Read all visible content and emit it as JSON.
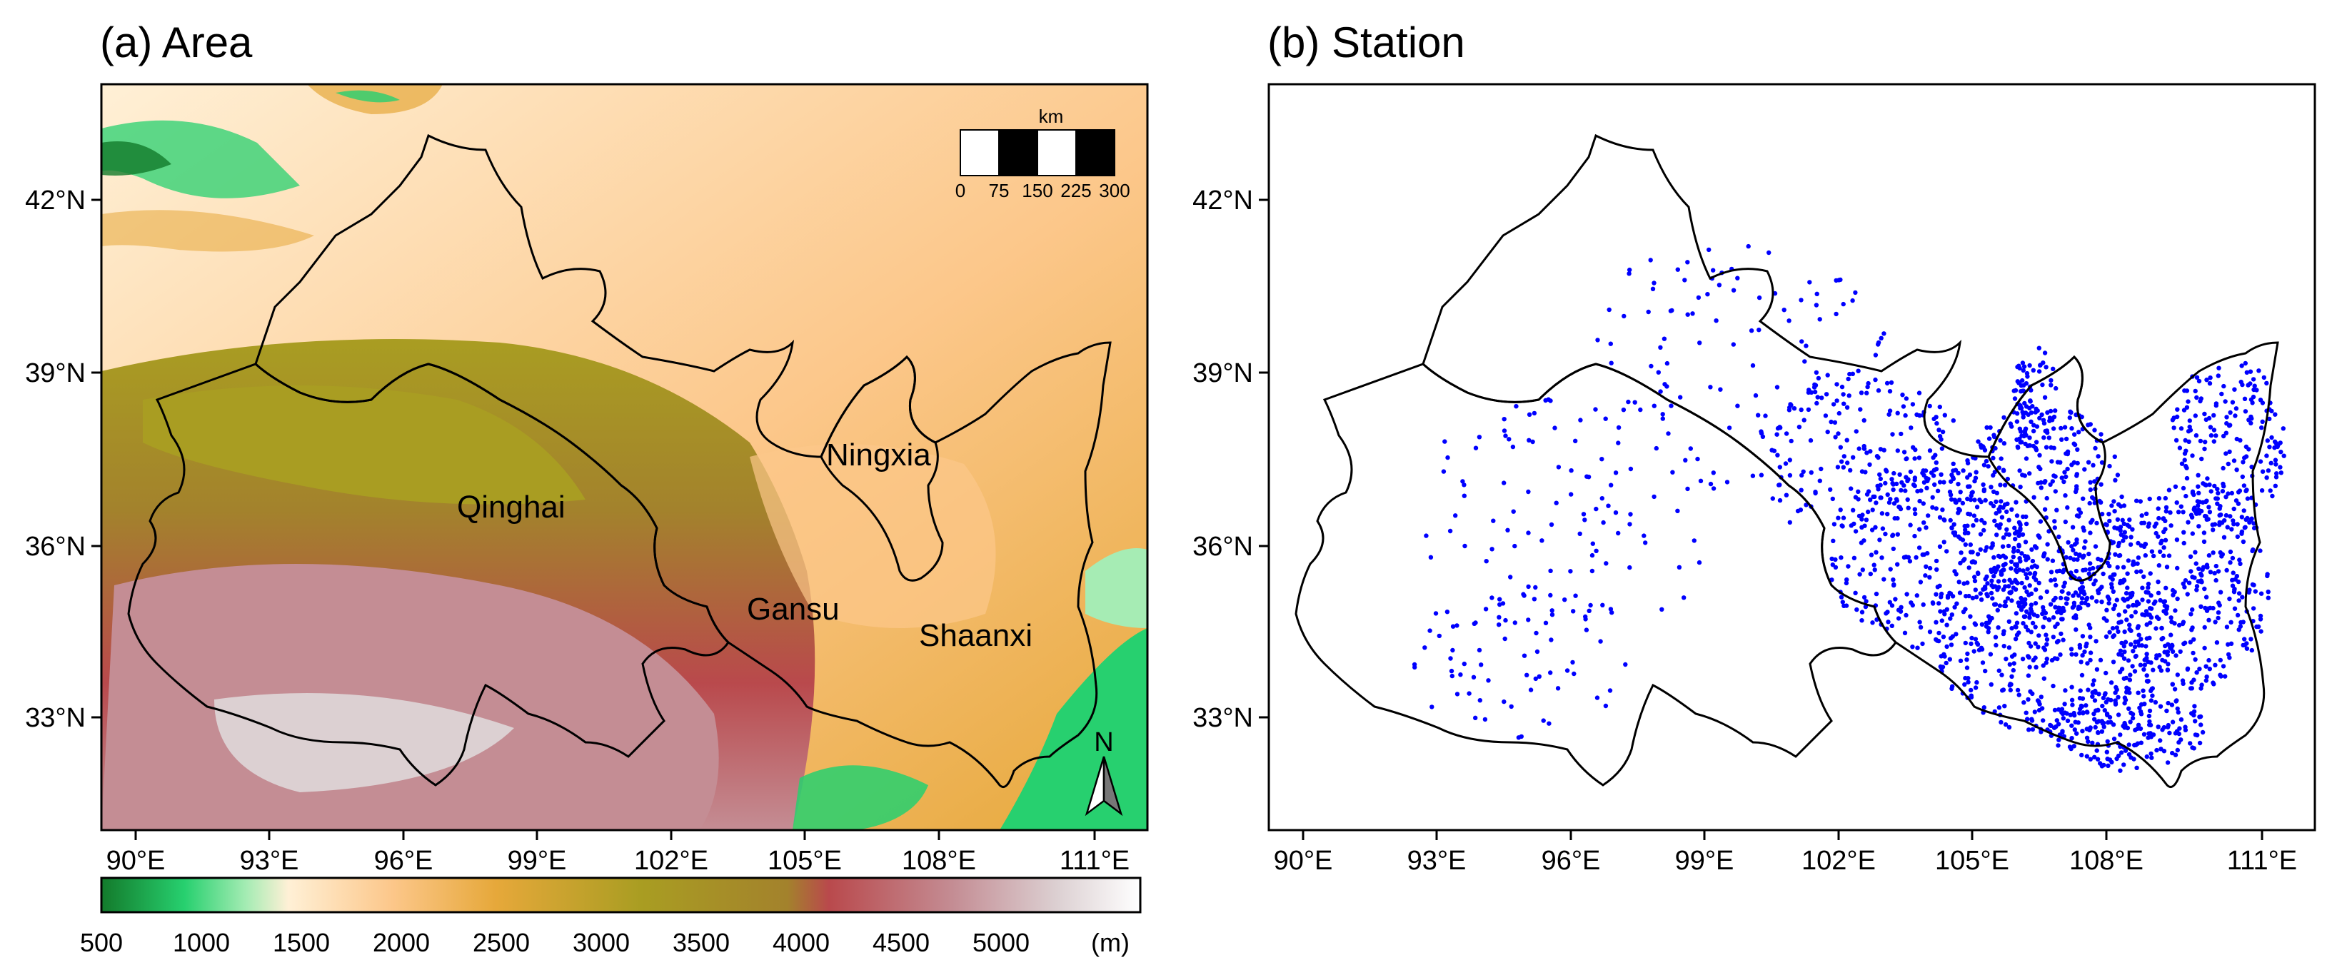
{
  "panels": [
    {
      "id": "a",
      "title": "(a) Area"
    },
    {
      "id": "b",
      "title": "(b) Station"
    }
  ],
  "axes": {
    "lon_ticks": [
      "90°E",
      "93°E",
      "96°E",
      "99°E",
      "102°E",
      "105°E",
      "108°E",
      "111°E"
    ],
    "lat_ticks": [
      "42°N",
      "39°N",
      "36°N",
      "33°N"
    ]
  },
  "provinces": [
    "Qinghai",
    "Gansu",
    "Ningxia",
    "Shaanxi"
  ],
  "scale_bar": {
    "unit": "km",
    "labels": [
      "0",
      "75",
      "150",
      "225",
      "300"
    ]
  },
  "north_arrow": {
    "label": "N"
  },
  "colorbar": {
    "ticks": [
      "500",
      "1000",
      "1500",
      "2000",
      "2500",
      "3000",
      "3500",
      "4000",
      "4500",
      "5000"
    ],
    "unit": "(m)",
    "colors": [
      "#137a2b",
      "#27d06f",
      "#a6ecb4",
      "#fff0d6",
      "#fcc78a",
      "#e6a83a",
      "#a99d22",
      "#a3822c",
      "#b9494c",
      "#c48d94",
      "#dcd0d2",
      "#ffffff"
    ]
  },
  "stations": {
    "color": "#0000ff"
  }
}
